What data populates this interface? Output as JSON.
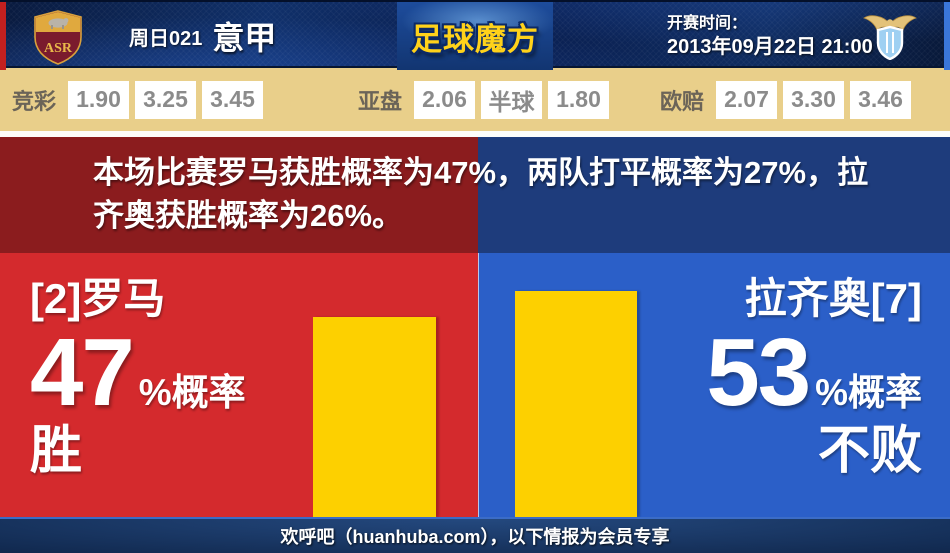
{
  "header": {
    "match_code": "周日021",
    "league": "意甲",
    "site_logo": "足球魔方",
    "kickoff_label": "开赛时间：",
    "kickoff_time": "2013年09月22日 21:00",
    "home_badge": "roma-crest",
    "away_badge": "lazio-eagle-crest"
  },
  "odds": {
    "jingcai": {
      "label": "竞彩",
      "values": [
        "1.90",
        "3.25",
        "3.45"
      ]
    },
    "yapan": {
      "label": "亚盘",
      "values": [
        "2.06",
        "半球",
        "1.80"
      ]
    },
    "oupei": {
      "label": "欧赔",
      "values": [
        "2.07",
        "3.30",
        "3.46"
      ]
    }
  },
  "summary": {
    "text": "本场比赛罗马获胜概率为47%，两队打平概率为27%，拉齐奥获胜概率为26%。",
    "lines": [
      "本场比赛罗马获胜概率为47%，两队打平概率为27%，拉",
      "齐奥获胜概率为26%。"
    ],
    "probabilities": {
      "home_win_pct": 47,
      "draw_pct": 27,
      "away_win_pct": 26
    }
  },
  "home": {
    "name": "[2]罗马",
    "percent": "47",
    "percent_suffix": "%概率",
    "outcome": "胜"
  },
  "away": {
    "name": "拉齐奥[7]",
    "percent": "53",
    "percent_suffix": "%概率",
    "outcome": "不败"
  },
  "footer": {
    "text": "欢呼吧（huanhuba.com），以下情报为会员专享"
  },
  "chart_data": {
    "type": "bar",
    "categories": [
      "罗马 胜",
      "拉齐奥 不败"
    ],
    "values": [
      47,
      53
    ],
    "unit": "%",
    "bar_color": "#fdd000",
    "orientation": "vertical",
    "value_labels": [
      "47%概率 胜",
      "53%概率 不败"
    ],
    "ylim": [
      0,
      62
    ],
    "grid": false,
    "legend": false
  },
  "colors": {
    "panel_red": "#d42a2d",
    "panel_blue": "#2b5fc8",
    "banner_red": "#8b1c1e",
    "banner_blue": "#1e3c7c",
    "bar_yellow": "#fdd000",
    "odds_bg": "#e9cf8a",
    "header_navy": "#0a2052",
    "logo_gold": "#ffd21a"
  }
}
